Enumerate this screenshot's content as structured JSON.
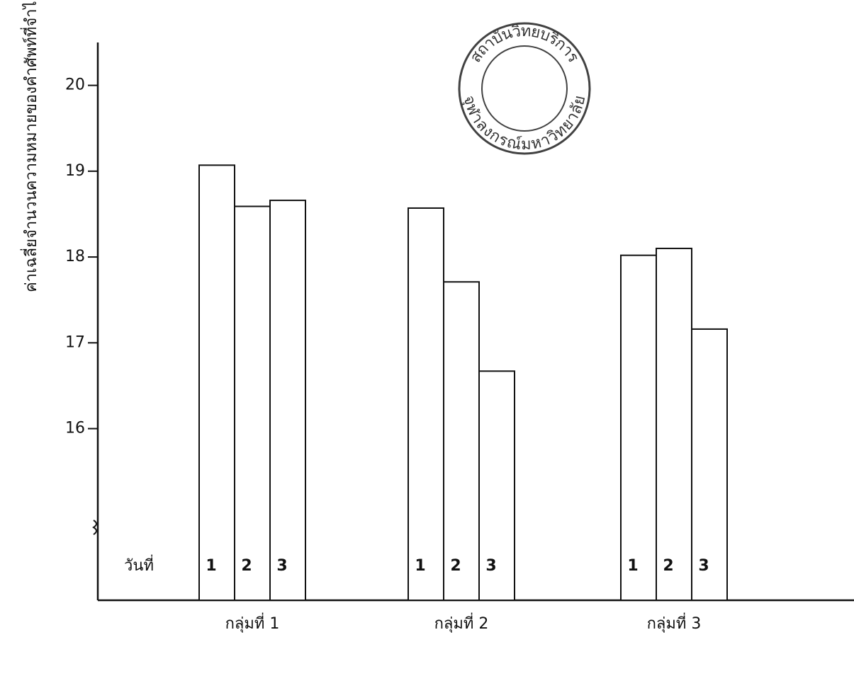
{
  "chart_data": {
    "type": "bar",
    "y_label": "ค่าเฉลี่ยจำนวนความหมายของคำศัพท์ที่จำได้",
    "x_label": "วันที่",
    "categories": [
      "กลุ่มที่ 1",
      "กลุ่มที่ 2",
      "กลุ่มที่ 3"
    ],
    "series": [
      {
        "name": "1",
        "color": "#ffffff",
        "values": [
          19.07,
          18.57,
          18.02
        ]
      },
      {
        "name": "2",
        "color": "#ffffff",
        "values": [
          18.59,
          17.71,
          18.1
        ]
      },
      {
        "name": "3",
        "color": "#ffffff",
        "values": [
          18.66,
          16.67,
          17.16
        ]
      }
    ],
    "ylim": [
      14,
      20.5
    ],
    "yticks": [
      16,
      17,
      18,
      19,
      20
    ],
    "grid": false,
    "annotations": [
      "สถาบันวิทยบริการ",
      "จุฬาลงกรณ์มหาวิทยาลัย"
    ]
  }
}
